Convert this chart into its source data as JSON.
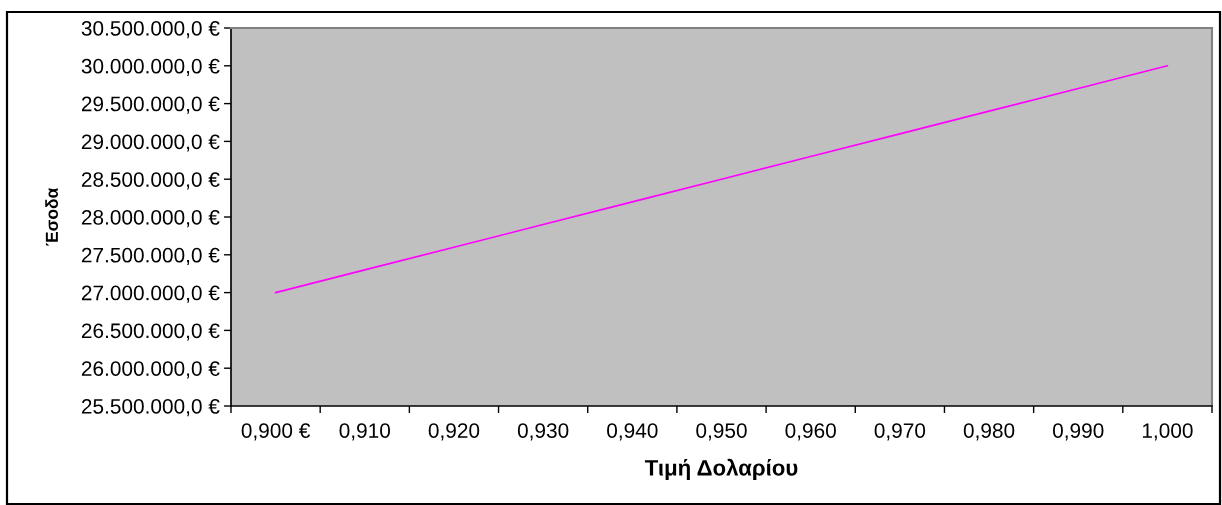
{
  "chart_data": {
    "type": "line",
    "xlabel": "Τιμή Δολαρίου",
    "ylabel": "Έσοδα",
    "categories": [
      "0,900 €",
      "0,910",
      "0,920",
      "0,930",
      "0,940",
      "0,950",
      "0,960",
      "0,970",
      "0,980",
      "0,990",
      "1,000"
    ],
    "series": [
      {
        "color": "#ff00ff",
        "values": [
          27000000,
          27300000,
          27600000,
          27900000,
          28200000,
          28500000,
          28800000,
          29100000,
          29400000,
          29700000,
          30000000
        ]
      }
    ],
    "ylim": [
      25500000,
      30500000
    ],
    "yticks": [
      {
        "value": 25500000,
        "label": "25.500.000,0 €"
      },
      {
        "value": 26000000,
        "label": "26.000.000,0 €"
      },
      {
        "value": 26500000,
        "label": "26.500.000,0 €"
      },
      {
        "value": 27000000,
        "label": "27.000.000,0 €"
      },
      {
        "value": 27500000,
        "label": "27.500.000,0 €"
      },
      {
        "value": 28000000,
        "label": "28.000.000,0 €"
      },
      {
        "value": 28500000,
        "label": "28.500.000,0 €"
      },
      {
        "value": 29000000,
        "label": "29.000.000,0 €"
      },
      {
        "value": 29500000,
        "label": "29.500.000,0 €"
      },
      {
        "value": 30000000,
        "label": "30.000.000,0 €"
      },
      {
        "value": 30500000,
        "label": "30.500.000,0 €"
      }
    ],
    "grid": false,
    "marker": "none",
    "line_style": "solid"
  }
}
